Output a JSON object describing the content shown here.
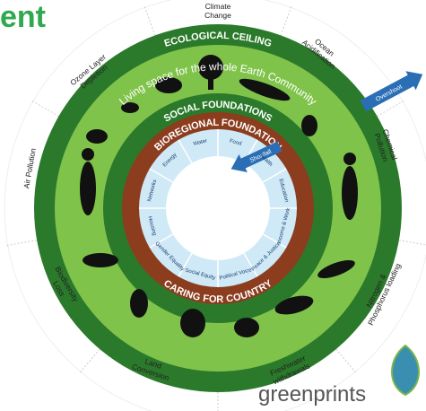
{
  "header_fragment": "ent",
  "outer_labels": [
    [
      "Climate",
      "Change"
    ],
    [
      "Ocean",
      "Acidification"
    ],
    [
      "Chemical",
      "Pollution"
    ],
    [
      "Nitrogen &",
      "Phosphorus loading"
    ],
    [
      "Freshwater",
      "withdrawals"
    ],
    [
      "Land",
      "Conversion"
    ],
    [
      "Biodiversity",
      "Loss"
    ],
    [
      "Air Pollution"
    ],
    [
      "Ozone Layer",
      "Depletion"
    ]
  ],
  "rings": {
    "ecological_ceiling": "ECOLOGICAL CEILING",
    "living_space": "Living space for the whole Earth Community",
    "social_foundations": "SOCIAL FOUNDATIONS",
    "bioregional_foundation": "BIOREGIONAL FOUNDATION",
    "caring_for_country": "CARING FOR COUNTRY"
  },
  "inner_segments": [
    "Water",
    "Food",
    "Health",
    "Education",
    "Income & Work",
    "Peace & Justice",
    "Political Voice",
    "Social Equity",
    "Gender Equality",
    "Housing",
    "Networks",
    "Energy"
  ],
  "arrows": {
    "overshoot": "Overshoot",
    "shortfall": "Shortfall"
  },
  "logo": "greenprints"
}
